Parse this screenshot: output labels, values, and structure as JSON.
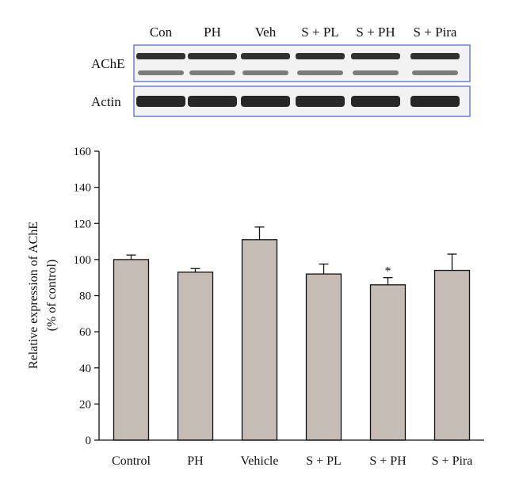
{
  "blot": {
    "lanes": [
      "Con",
      "PH",
      "Veh",
      "S + PL",
      "S + PH",
      "S + Pira"
    ],
    "rows": [
      {
        "label": "AChE",
        "kind": "double-band"
      },
      {
        "label": "Actin",
        "kind": "single-band"
      }
    ],
    "frame_color": "#6b7fd6"
  },
  "chart_data": {
    "type": "bar",
    "categories": [
      "Control",
      "PH",
      "Vehicle",
      "S + PL",
      "S + PH",
      "S + Pira"
    ],
    "values": [
      100,
      93,
      111,
      92,
      86,
      94
    ],
    "errors": [
      2.5,
      2,
      7,
      5.5,
      4,
      9
    ],
    "significance": [
      "",
      "",
      "",
      "",
      "*",
      ""
    ],
    "title": "",
    "xlabel": "",
    "ylabel_line1": "Relative expression of AChE",
    "ylabel_line2": "(% of control)",
    "ylim": [
      0,
      160
    ],
    "yticks": [
      0,
      20,
      40,
      60,
      80,
      100,
      120,
      140,
      160
    ],
    "grid": false,
    "bar_color": "#c5bcb6",
    "bar_edge_color": "#111111"
  }
}
